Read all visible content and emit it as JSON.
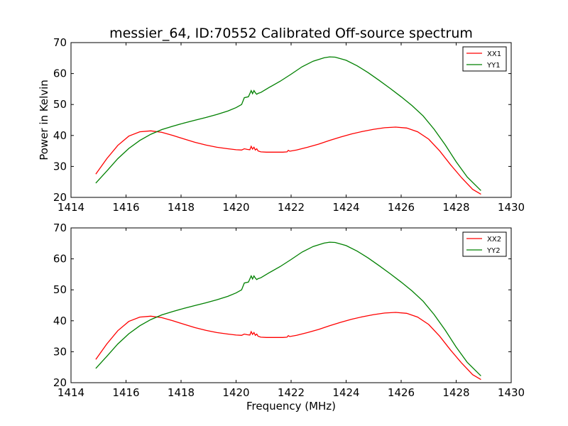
{
  "title": "messier_64, ID:70552 Calibrated Off-source spectrum",
  "ylabel": "Power in Kelvin",
  "xlabel": "Frequency (MHz)",
  "chart_data": [
    {
      "type": "line",
      "title": "messier_64, ID:70552 Calibrated Off-source spectrum",
      "xlabel": "",
      "ylabel": "Power in Kelvin",
      "xlim": [
        1414,
        1430
      ],
      "ylim": [
        20,
        70
      ],
      "xticks": [
        1414,
        1416,
        1418,
        1420,
        1422,
        1424,
        1426,
        1428,
        1430
      ],
      "yticks": [
        20,
        30,
        40,
        50,
        60,
        70
      ],
      "legend": "top-right",
      "grid": false,
      "series": [
        {
          "name": "XX1",
          "color": "#ff0000",
          "x": [
            1414.9,
            1415.3,
            1415.7,
            1416.1,
            1416.5,
            1416.9,
            1417.3,
            1417.7,
            1418.1,
            1418.5,
            1418.9,
            1419.3,
            1419.7,
            1420.0,
            1420.2,
            1420.3,
            1420.4,
            1420.5,
            1420.55,
            1420.6,
            1420.65,
            1420.7,
            1420.75,
            1420.8,
            1420.9,
            1421.1,
            1421.4,
            1421.7,
            1421.85,
            1421.9,
            1421.95,
            1422.2,
            1422.6,
            1423.0,
            1423.4,
            1423.8,
            1424.2,
            1424.6,
            1425.0,
            1425.4,
            1425.8,
            1426.2,
            1426.6,
            1427.0,
            1427.4,
            1427.8,
            1428.2,
            1428.6,
            1428.9
          ],
          "y": [
            27.5,
            32.5,
            36.8,
            39.8,
            41.2,
            41.5,
            41.0,
            40.0,
            38.9,
            37.8,
            36.9,
            36.2,
            35.7,
            35.4,
            35.3,
            35.7,
            35.5,
            35.4,
            36.5,
            35.6,
            36.2,
            35.3,
            35.7,
            35.0,
            34.7,
            34.6,
            34.6,
            34.6,
            34.7,
            35.2,
            34.9,
            35.3,
            36.2,
            37.2,
            38.4,
            39.5,
            40.5,
            41.3,
            42.0,
            42.5,
            42.7,
            42.4,
            41.2,
            38.8,
            35.0,
            30.5,
            26.3,
            22.6,
            21.0
          ]
        },
        {
          "name": "YY1",
          "color": "#008000",
          "x": [
            1414.9,
            1415.3,
            1415.7,
            1416.1,
            1416.5,
            1416.9,
            1417.3,
            1417.7,
            1418.1,
            1418.5,
            1418.9,
            1419.3,
            1419.7,
            1420.0,
            1420.2,
            1420.3,
            1420.45,
            1420.55,
            1420.6,
            1420.65,
            1420.7,
            1420.75,
            1420.8,
            1420.9,
            1421.2,
            1421.6,
            1422.0,
            1422.4,
            1422.8,
            1423.2,
            1423.4,
            1423.6,
            1424.0,
            1424.4,
            1424.8,
            1425.2,
            1425.6,
            1426.0,
            1426.4,
            1426.8,
            1427.2,
            1427.6,
            1428.0,
            1428.4,
            1428.9
          ],
          "y": [
            24.6,
            28.5,
            32.5,
            35.8,
            38.4,
            40.4,
            41.9,
            43.0,
            44.0,
            44.9,
            45.8,
            46.8,
            47.9,
            49.0,
            50.0,
            52.2,
            52.5,
            54.5,
            53.5,
            54.5,
            53.8,
            53.3,
            53.6,
            53.9,
            55.5,
            57.5,
            59.8,
            62.2,
            64.0,
            65.1,
            65.4,
            65.3,
            64.3,
            62.5,
            60.3,
            57.8,
            55.2,
            52.5,
            49.6,
            46.3,
            42.0,
            37.0,
            31.5,
            26.6,
            22.2
          ]
        }
      ]
    },
    {
      "type": "line",
      "title": "",
      "xlabel": "Frequency (MHz)",
      "ylabel": "",
      "xlim": [
        1414,
        1430
      ],
      "ylim": [
        20,
        70
      ],
      "xticks": [
        1414,
        1416,
        1418,
        1420,
        1422,
        1424,
        1426,
        1428,
        1430
      ],
      "yticks": [
        20,
        30,
        40,
        50,
        60,
        70
      ],
      "legend": "top-right",
      "grid": false,
      "series": [
        {
          "name": "XX2",
          "color": "#ff0000",
          "x": [
            1414.9,
            1415.3,
            1415.7,
            1416.1,
            1416.5,
            1416.9,
            1417.3,
            1417.7,
            1418.1,
            1418.5,
            1418.9,
            1419.3,
            1419.7,
            1420.0,
            1420.2,
            1420.3,
            1420.4,
            1420.5,
            1420.55,
            1420.6,
            1420.65,
            1420.7,
            1420.75,
            1420.8,
            1420.9,
            1421.1,
            1421.4,
            1421.7,
            1421.85,
            1421.9,
            1421.95,
            1422.2,
            1422.6,
            1423.0,
            1423.4,
            1423.8,
            1424.2,
            1424.6,
            1425.0,
            1425.4,
            1425.8,
            1426.2,
            1426.6,
            1427.0,
            1427.4,
            1427.8,
            1428.2,
            1428.6,
            1428.9
          ],
          "y": [
            27.5,
            32.5,
            36.8,
            39.8,
            41.2,
            41.5,
            41.0,
            40.0,
            38.9,
            37.8,
            36.9,
            36.2,
            35.7,
            35.4,
            35.3,
            35.7,
            35.5,
            35.4,
            36.5,
            35.6,
            36.2,
            35.3,
            35.7,
            35.0,
            34.7,
            34.6,
            34.6,
            34.6,
            34.7,
            35.2,
            34.9,
            35.3,
            36.2,
            37.2,
            38.4,
            39.5,
            40.5,
            41.3,
            42.0,
            42.5,
            42.7,
            42.4,
            41.2,
            38.8,
            35.0,
            30.5,
            26.3,
            22.6,
            21.0
          ]
        },
        {
          "name": "YY2",
          "color": "#008000",
          "x": [
            1414.9,
            1415.3,
            1415.7,
            1416.1,
            1416.5,
            1416.9,
            1417.3,
            1417.7,
            1418.1,
            1418.5,
            1418.9,
            1419.3,
            1419.7,
            1420.0,
            1420.2,
            1420.3,
            1420.45,
            1420.55,
            1420.6,
            1420.65,
            1420.7,
            1420.75,
            1420.8,
            1420.9,
            1421.2,
            1421.6,
            1422.0,
            1422.4,
            1422.8,
            1423.2,
            1423.4,
            1423.6,
            1424.0,
            1424.4,
            1424.8,
            1425.2,
            1425.6,
            1426.0,
            1426.4,
            1426.8,
            1427.2,
            1427.6,
            1428.0,
            1428.4,
            1428.9
          ],
          "y": [
            24.6,
            28.5,
            32.5,
            35.8,
            38.4,
            40.4,
            41.9,
            43.0,
            44.0,
            44.9,
            45.8,
            46.8,
            47.9,
            49.0,
            50.0,
            52.2,
            52.5,
            54.5,
            53.5,
            54.5,
            53.8,
            53.3,
            53.6,
            53.9,
            55.5,
            57.5,
            59.8,
            62.2,
            64.0,
            65.1,
            65.4,
            65.3,
            64.3,
            62.5,
            60.3,
            57.8,
            55.2,
            52.5,
            49.6,
            46.3,
            42.0,
            37.0,
            31.5,
            26.6,
            22.2
          ]
        }
      ]
    }
  ]
}
